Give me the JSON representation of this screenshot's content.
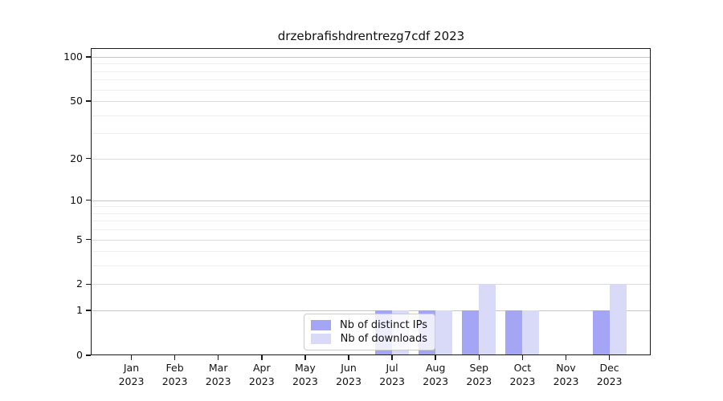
{
  "title": "drzebrafishdrentrezg7cdf 2023",
  "colors": {
    "ips_bar": "#a5a5f5",
    "downloads_bar": "#d9d9f8",
    "grid_major": "#c6c6c6",
    "grid_mid": "#dcdcdc",
    "grid_minor": "#efefef",
    "axis": "#1a1a1a",
    "legend_border": "#cccccc"
  },
  "legend": {
    "items": [
      {
        "label": "Nb of distinct IPs",
        "color_key": "ips_bar"
      },
      {
        "label": "Nb of downloads",
        "color_key": "downloads_bar"
      }
    ]
  },
  "chart_data": {
    "type": "bar",
    "title": "drzebrafishdrentrezg7cdf 2023",
    "categories": [
      "Jan 2023",
      "Feb 2023",
      "Mar 2023",
      "Apr 2023",
      "May 2023",
      "Jun 2023",
      "Jul 2023",
      "Aug 2023",
      "Sep 2023",
      "Oct 2023",
      "Nov 2023",
      "Dec 2023"
    ],
    "month_labels": [
      "Jan",
      "Feb",
      "Mar",
      "Apr",
      "May",
      "Jun",
      "Jul",
      "Aug",
      "Sep",
      "Oct",
      "Nov",
      "Dec"
    ],
    "year_label": "2023",
    "series": [
      {
        "name": "Nb of distinct IPs",
        "values": [
          0,
          0,
          0,
          0,
          0,
          0,
          1,
          1,
          1,
          1,
          0,
          1
        ]
      },
      {
        "name": "Nb of downloads",
        "values": [
          0,
          0,
          0,
          0,
          0,
          0,
          1,
          1,
          2,
          1,
          0,
          2
        ]
      }
    ],
    "y_ticks": [
      0,
      1,
      2,
      5,
      10,
      20,
      50,
      100
    ],
    "y_minor_gridlines": [
      3,
      4,
      6,
      7,
      8,
      9,
      30,
      40,
      60,
      70,
      80,
      90
    ],
    "y_scale": "log10(1+x)",
    "ylim": [
      0,
      113
    ],
    "xlabel": "",
    "ylabel": "",
    "grid": "horizontal",
    "legend_position": "bottom-center-inside"
  }
}
